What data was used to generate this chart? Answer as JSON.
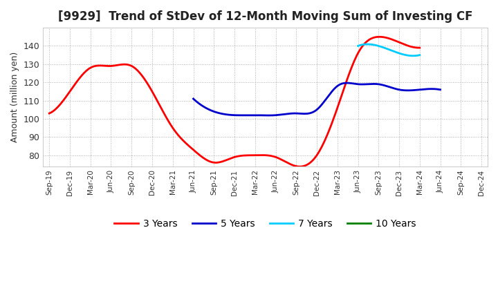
{
  "title": "[9929]  Trend of StDev of 12-Month Moving Sum of Investing CF",
  "ylabel": "Amount (million yen)",
  "x_labels": [
    "Sep-19",
    "Dec-19",
    "Mar-20",
    "Jun-20",
    "Sep-20",
    "Dec-20",
    "Mar-21",
    "Jun-21",
    "Sep-21",
    "Dec-21",
    "Mar-22",
    "Jun-22",
    "Sep-22",
    "Dec-22",
    "Mar-23",
    "Jun-23",
    "Sep-23",
    "Dec-23",
    "Mar-24",
    "Jun-24",
    "Sep-24",
    "Dec-24"
  ],
  "series": {
    "3 Years": {
      "color": "#ff0000",
      "data_x": [
        0,
        1,
        2,
        3,
        4,
        5,
        6,
        7,
        8,
        9,
        10,
        11,
        12,
        13,
        14,
        15,
        16,
        17,
        18
      ],
      "data_y": [
        103,
        115,
        128,
        129,
        129,
        115,
        95,
        83,
        76,
        79,
        80,
        79,
        74,
        80,
        106,
        136,
        145,
        142,
        139
      ]
    },
    "5 Years": {
      "color": "#0000cc",
      "data_x": [
        7,
        8,
        9,
        10,
        11,
        12,
        13,
        14,
        15,
        16,
        17,
        18,
        19
      ],
      "data_y": [
        111,
        104,
        102,
        102,
        102,
        103,
        105,
        118,
        119,
        119,
        116,
        116,
        116
      ]
    },
    "7 Years": {
      "color": "#00ccff",
      "data_x": [
        15,
        16,
        17,
        18
      ],
      "data_y": [
        140,
        140,
        136,
        135
      ]
    },
    "10 Years": {
      "color": "#008000",
      "data_x": [],
      "data_y": []
    }
  },
  "ylim": [
    74,
    150
  ],
  "yticks": [
    80,
    90,
    100,
    110,
    120,
    130,
    140
  ],
  "background_color": "#ffffff",
  "grid_color": "#999999",
  "title_fontsize": 12,
  "axis_fontsize": 9,
  "legend_fontsize": 10
}
